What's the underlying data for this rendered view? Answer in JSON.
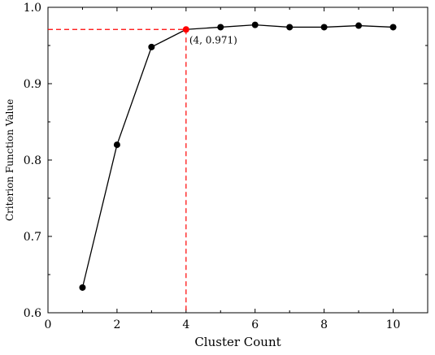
{
  "chart_data": {
    "type": "line",
    "title": "",
    "xlabel": "Cluster Count",
    "ylabel": "Criterion Function Value",
    "xlim": [
      0,
      11
    ],
    "ylim": [
      0.6,
      1.0
    ],
    "x_ticks": [
      0,
      2,
      4,
      6,
      8,
      10
    ],
    "y_ticks": [
      0.6,
      0.7,
      0.8,
      0.9,
      1.0
    ],
    "x_tick_labels": [
      "0",
      "2",
      "4",
      "6",
      "8",
      "10"
    ],
    "y_tick_labels": [
      "0.6",
      "0.7",
      "0.8",
      "0.9",
      "1.0"
    ],
    "grid": false,
    "legend": false,
    "series": [
      {
        "x": [
          1,
          2,
          3,
          4,
          5,
          6,
          7,
          8,
          9,
          10
        ],
        "y": [
          0.633,
          0.82,
          0.948,
          0.971,
          0.974,
          0.977,
          0.974,
          0.974,
          0.976,
          0.974
        ],
        "color": "#000000",
        "marker": "circle"
      }
    ],
    "highlight": {
      "x": 4,
      "y": 0.971,
      "color": "#ff0000",
      "label": "(4, 0.971)"
    }
  }
}
